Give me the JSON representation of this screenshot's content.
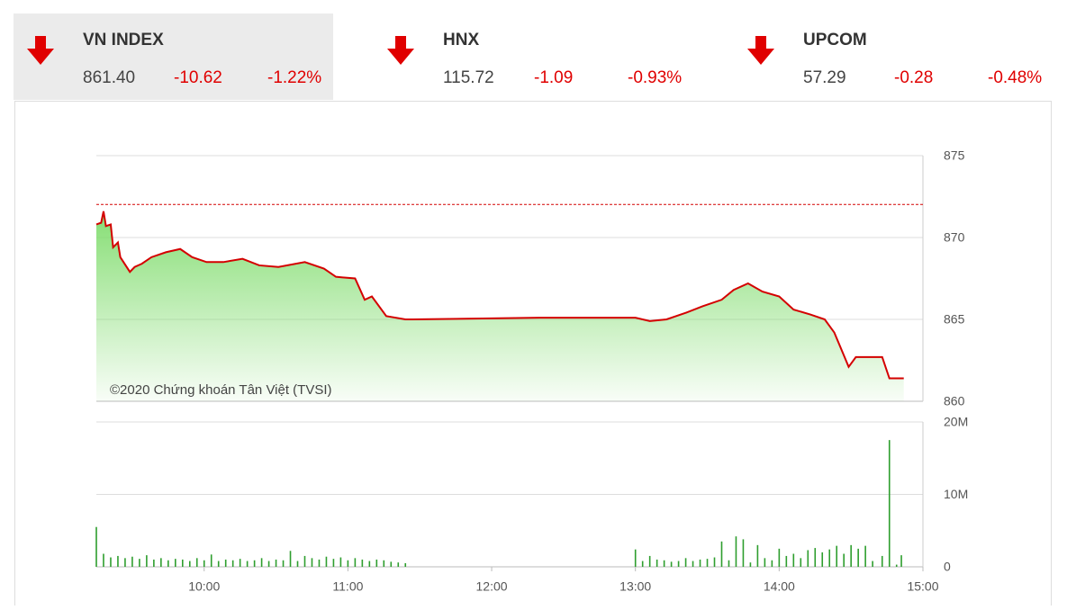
{
  "indices": [
    {
      "name": "VN INDEX",
      "value": "861.40",
      "change": "-10.62",
      "percent": "-1.22%"
    },
    {
      "name": "HNX",
      "value": "115.72",
      "change": "-1.09",
      "percent": "-0.93%"
    },
    {
      "name": "UPCOM",
      "value": "57.29",
      "change": "-0.28",
      "percent": "-0.48%"
    }
  ],
  "chart_data": [
    {
      "type": "line",
      "annotation": "©2020 Chứng khoán Tân Việt (TVSI)",
      "x": [
        555,
        557,
        558,
        559,
        561,
        562,
        564,
        565,
        569,
        571,
        574,
        578,
        584,
        590,
        595,
        601,
        608,
        616,
        623,
        631,
        642,
        650,
        655,
        663,
        667,
        670,
        676,
        684,
        687,
        740,
        780,
        786,
        793,
        801,
        808,
        816,
        821,
        827,
        833,
        840,
        846,
        853,
        859,
        863,
        867,
        869,
        872,
        883,
        886,
        892
      ],
      "series": [
        {
          "name": "VN INDEX",
          "color": "#d40000",
          "values": [
            870.8,
            870.9,
            871.6,
            870.7,
            870.8,
            869.4,
            869.7,
            868.8,
            867.9,
            868.2,
            868.4,
            868.8,
            869.1,
            869.3,
            868.8,
            868.5,
            868.5,
            868.7,
            868.3,
            868.2,
            868.5,
            868.1,
            867.6,
            867.5,
            866.2,
            866.4,
            865.2,
            865.0,
            865.0,
            865.1,
            865.1,
            864.9,
            865.0,
            865.4,
            865.8,
            866.2,
            866.8,
            867.2,
            866.7,
            866.4,
            865.6,
            865.3,
            865.0,
            864.2,
            862.8,
            862.1,
            862.7,
            862.7,
            861.4,
            861.4
          ]
        }
      ],
      "reference": 872.02,
      "reference_color": "#d40000",
      "area_color": "#7fdc6c",
      "xlim": [
        555,
        900
      ],
      "ylim": [
        860,
        875
      ],
      "yticks": [
        860,
        865,
        870,
        875
      ],
      "grid": true
    },
    {
      "type": "bar",
      "x": [
        555,
        558,
        561,
        564,
        567,
        570,
        573,
        576,
        579,
        582,
        585,
        588,
        591,
        594,
        597,
        600,
        603,
        606,
        609,
        612,
        615,
        618,
        621,
        624,
        627,
        630,
        633,
        636,
        639,
        642,
        645,
        648,
        651,
        654,
        657,
        660,
        663,
        666,
        669,
        672,
        675,
        678,
        681,
        684,
        780,
        783,
        786,
        789,
        792,
        795,
        798,
        801,
        804,
        807,
        810,
        813,
        816,
        819,
        822,
        825,
        828,
        831,
        834,
        837,
        840,
        843,
        846,
        849,
        852,
        855,
        858,
        861,
        864,
        867,
        870,
        873,
        876,
        879,
        883,
        886,
        889,
        891
      ],
      "values": [
        5.5,
        1.8,
        1.3,
        1.5,
        1.2,
        1.4,
        1.1,
        1.6,
        1.0,
        1.2,
        0.9,
        1.1,
        1.0,
        0.8,
        1.2,
        0.9,
        1.7,
        0.8,
        1.0,
        0.9,
        1.1,
        0.8,
        0.9,
        1.2,
        0.8,
        1.0,
        0.9,
        2.2,
        0.8,
        1.5,
        1.2,
        1.0,
        1.4,
        1.1,
        1.3,
        0.9,
        1.2,
        1.0,
        0.8,
        1.0,
        0.9,
        0.7,
        0.6,
        0.5,
        2.4,
        0.8,
        1.5,
        1.0,
        0.9,
        0.7,
        0.8,
        1.2,
        0.8,
        1.0,
        1.1,
        1.3,
        3.5,
        0.9,
        4.2,
        3.8,
        0.6,
        3.0,
        1.2,
        0.9,
        2.5,
        1.5,
        1.8,
        1.2,
        2.3,
        2.6,
        2.0,
        2.4,
        2.9,
        1.8,
        3.0,
        2.5,
        2.9,
        0.8,
        1.5,
        17.5,
        0.3,
        1.6
      ],
      "color": "#2e9e2e",
      "xlim": [
        555,
        900
      ],
      "ylim": [
        0,
        20
      ],
      "yticks": [
        0,
        {
          "value": 10,
          "label": "10M"
        },
        {
          "value": 20,
          "label": "20M"
        }
      ],
      "xticks": [
        {
          "value": 600,
          "label": "10:00"
        },
        {
          "value": 660,
          "label": "11:00"
        },
        {
          "value": 720,
          "label": "12:00"
        },
        {
          "value": 780,
          "label": "13:00"
        },
        {
          "value": 840,
          "label": "14:00"
        },
        {
          "value": 900,
          "label": "15:00"
        }
      ],
      "grid": true
    }
  ]
}
